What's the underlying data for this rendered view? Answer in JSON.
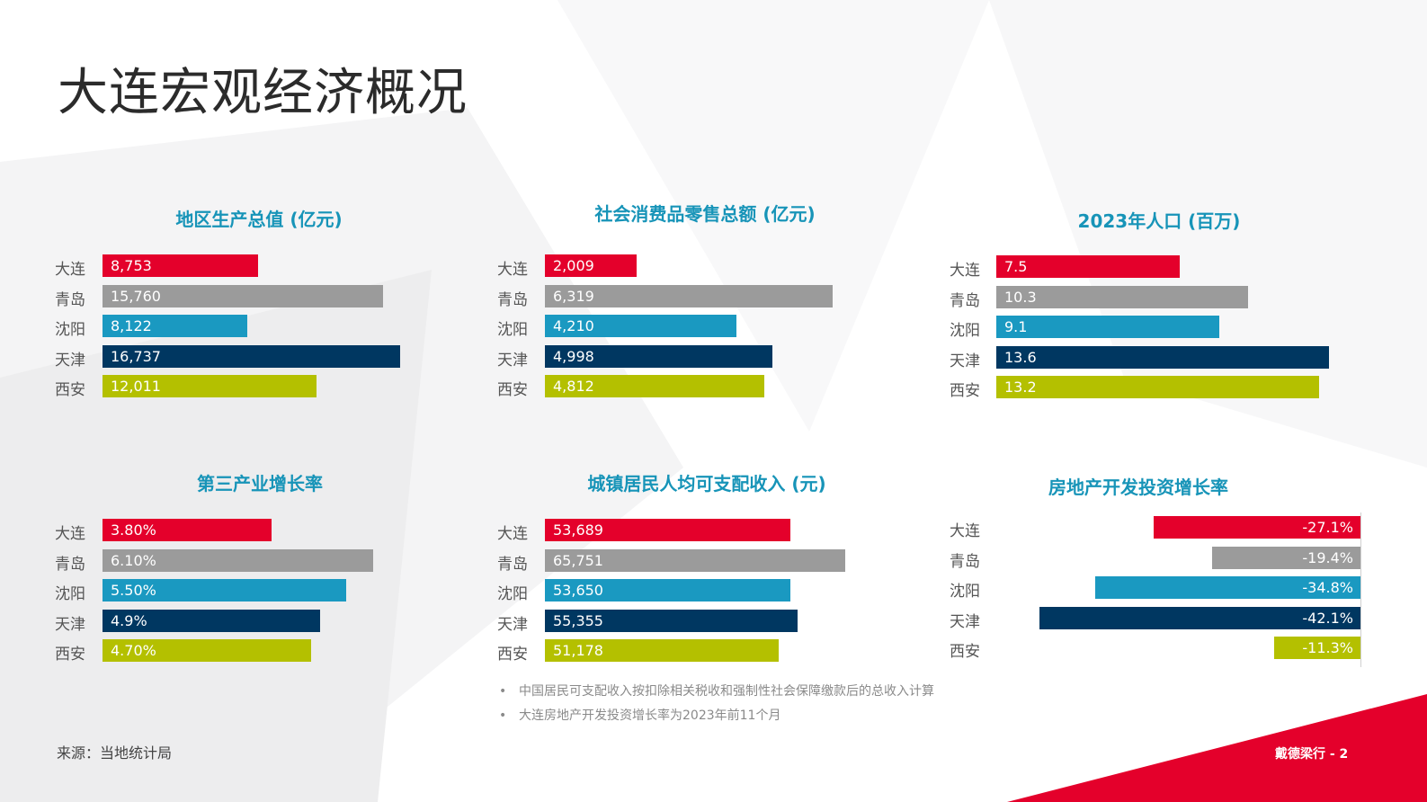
{
  "page": {
    "title": "大连宏观经济概况",
    "source": "来源：当地统计局",
    "brand": "戴德梁行 - 2",
    "notes": [
      "中国居民可支配收入按扣除相关税收和强制性社会保障缴款后的总收入计算",
      "大连房地产开发投资增长率为2023年前11个月"
    ]
  },
  "colors": {
    "大连": "#e4002b",
    "青岛": "#9b9b9b",
    "沈阳": "#1a99c1",
    "天津": "#003761",
    "西安": "#b4c000",
    "title": "#1794b8"
  },
  "chart_data": [
    {
      "type": "bar",
      "title": "地区生产总值 (亿元)",
      "categories": [
        "大连",
        "青岛",
        "沈阳",
        "天津",
        "西安"
      ],
      "values": [
        8753,
        15760,
        8122,
        16737,
        12011
      ],
      "labels": [
        "8,753",
        "15,760",
        "8,122",
        "16,737",
        "12,011"
      ]
    },
    {
      "type": "bar",
      "title": "社会消费品零售总额 (亿元)",
      "categories": [
        "大连",
        "青岛",
        "沈阳",
        "天津",
        "西安"
      ],
      "values": [
        2009,
        6319,
        4210,
        4998,
        4812
      ],
      "labels": [
        "2,009",
        "6,319",
        "4,210",
        "4,998",
        "4,812"
      ]
    },
    {
      "type": "bar",
      "title": "2023年人口 (百万)",
      "categories": [
        "大连",
        "青岛",
        "沈阳",
        "天津",
        "西安"
      ],
      "values": [
        7.5,
        10.3,
        9.1,
        13.6,
        13.2
      ],
      "labels": [
        "7.5",
        "10.3",
        "9.1",
        "13.6",
        "13.2"
      ]
    },
    {
      "type": "bar",
      "title": "第三产业增长率",
      "categories": [
        "大连",
        "青岛",
        "沈阳",
        "天津",
        "西安"
      ],
      "values": [
        3.8,
        6.1,
        5.5,
        4.9,
        4.7
      ],
      "labels": [
        "3.80%",
        "6.10%",
        "5.50%",
        "4.9%",
        "4.70%"
      ]
    },
    {
      "type": "bar",
      "title": "城镇居民人均可支配收入 (元)",
      "categories": [
        "大连",
        "青岛",
        "沈阳",
        "天津",
        "西安"
      ],
      "values": [
        53689,
        65751,
        53650,
        55355,
        51178
      ],
      "labels": [
        "53,689",
        "65,751",
        "53,650",
        "55,355",
        "51,178"
      ]
    },
    {
      "type": "bar",
      "title": "房地产开发投资增长率",
      "categories": [
        "大连",
        "青岛",
        "沈阳",
        "天津",
        "西安"
      ],
      "values": [
        -27.1,
        -19.4,
        -34.8,
        -42.1,
        -11.3
      ],
      "labels": [
        "-27.1%",
        "-19.4%",
        "-34.8%",
        "-42.1%",
        "-11.3%"
      ]
    }
  ]
}
